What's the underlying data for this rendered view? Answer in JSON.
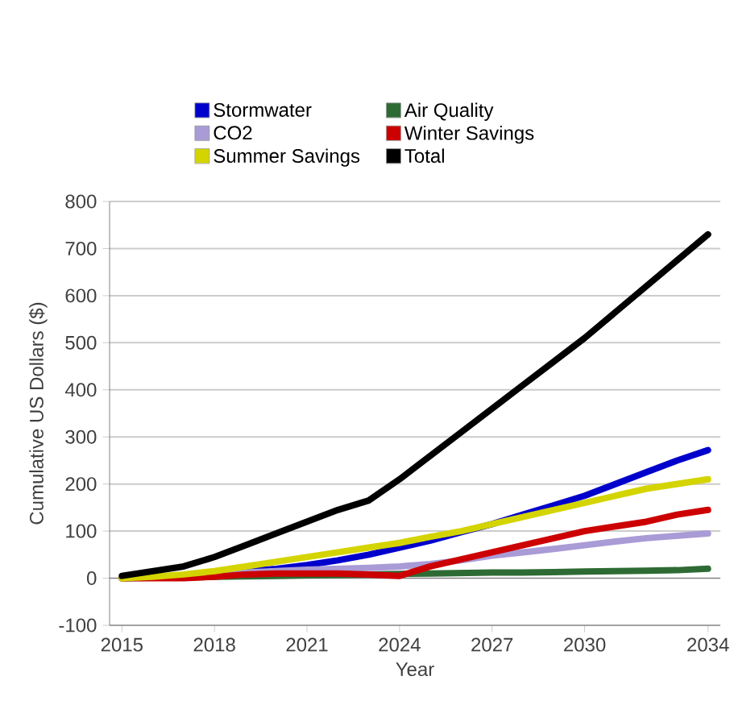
{
  "chart_data": {
    "type": "line",
    "xlabel": "Year",
    "ylabel": "Cumulative US Dollars ($)",
    "x": [
      2015,
      2016,
      2017,
      2018,
      2019,
      2020,
      2021,
      2022,
      2023,
      2024,
      2025,
      2026,
      2027,
      2028,
      2029,
      2030,
      2031,
      2032,
      2033,
      2034
    ],
    "xlim": [
      2014.6,
      2034.4
    ],
    "xticks": [
      2015,
      2018,
      2021,
      2024,
      2027,
      2030,
      2034
    ],
    "ylim": [
      -100,
      800
    ],
    "yticks": [
      -100,
      0,
      100,
      200,
      300,
      400,
      500,
      600,
      700,
      800
    ],
    "grid": "y",
    "legend": "top",
    "marker": "none",
    "line_style": "solid",
    "series": [
      {
        "name": "Stormwater",
        "color": "#0000cc",
        "values": [
          null,
          null,
          null,
          null,
          15,
          20,
          28,
          38,
          50,
          65,
          80,
          98,
          115,
          135,
          155,
          175,
          200,
          225,
          250,
          272
        ]
      },
      {
        "name": "Air Quality",
        "color": "#2e6b34",
        "values": [
          0,
          1,
          2,
          3,
          4,
          5,
          6,
          7,
          8,
          9,
          10,
          11,
          12,
          12,
          13,
          14,
          15,
          16,
          17,
          20
        ]
      },
      {
        "name": "CO2",
        "color": "#a99bd6",
        "values": [
          0,
          null,
          5,
          null,
          12,
          15,
          18,
          20,
          22,
          25,
          30,
          38,
          48,
          55,
          62,
          70,
          78,
          85,
          90,
          95
        ]
      },
      {
        "name": "Winter Savings",
        "color": "#cc0000",
        "values": [
          0,
          0,
          0,
          3,
          8,
          10,
          10,
          10,
          8,
          5,
          25,
          40,
          55,
          70,
          85,
          100,
          110,
          120,
          135,
          145
        ]
      },
      {
        "name": "Summer Savings",
        "color": "#d4d400",
        "values": [
          0,
          3,
          8,
          15,
          25,
          35,
          45,
          55,
          65,
          75,
          88,
          100,
          115,
          130,
          145,
          160,
          175,
          190,
          200,
          210
        ]
      },
      {
        "name": "Total",
        "color": "#000000",
        "values": [
          5,
          15,
          25,
          45,
          70,
          95,
          120,
          145,
          165,
          210,
          260,
          310,
          360,
          410,
          460,
          510,
          565,
          620,
          675,
          730
        ]
      }
    ]
  }
}
